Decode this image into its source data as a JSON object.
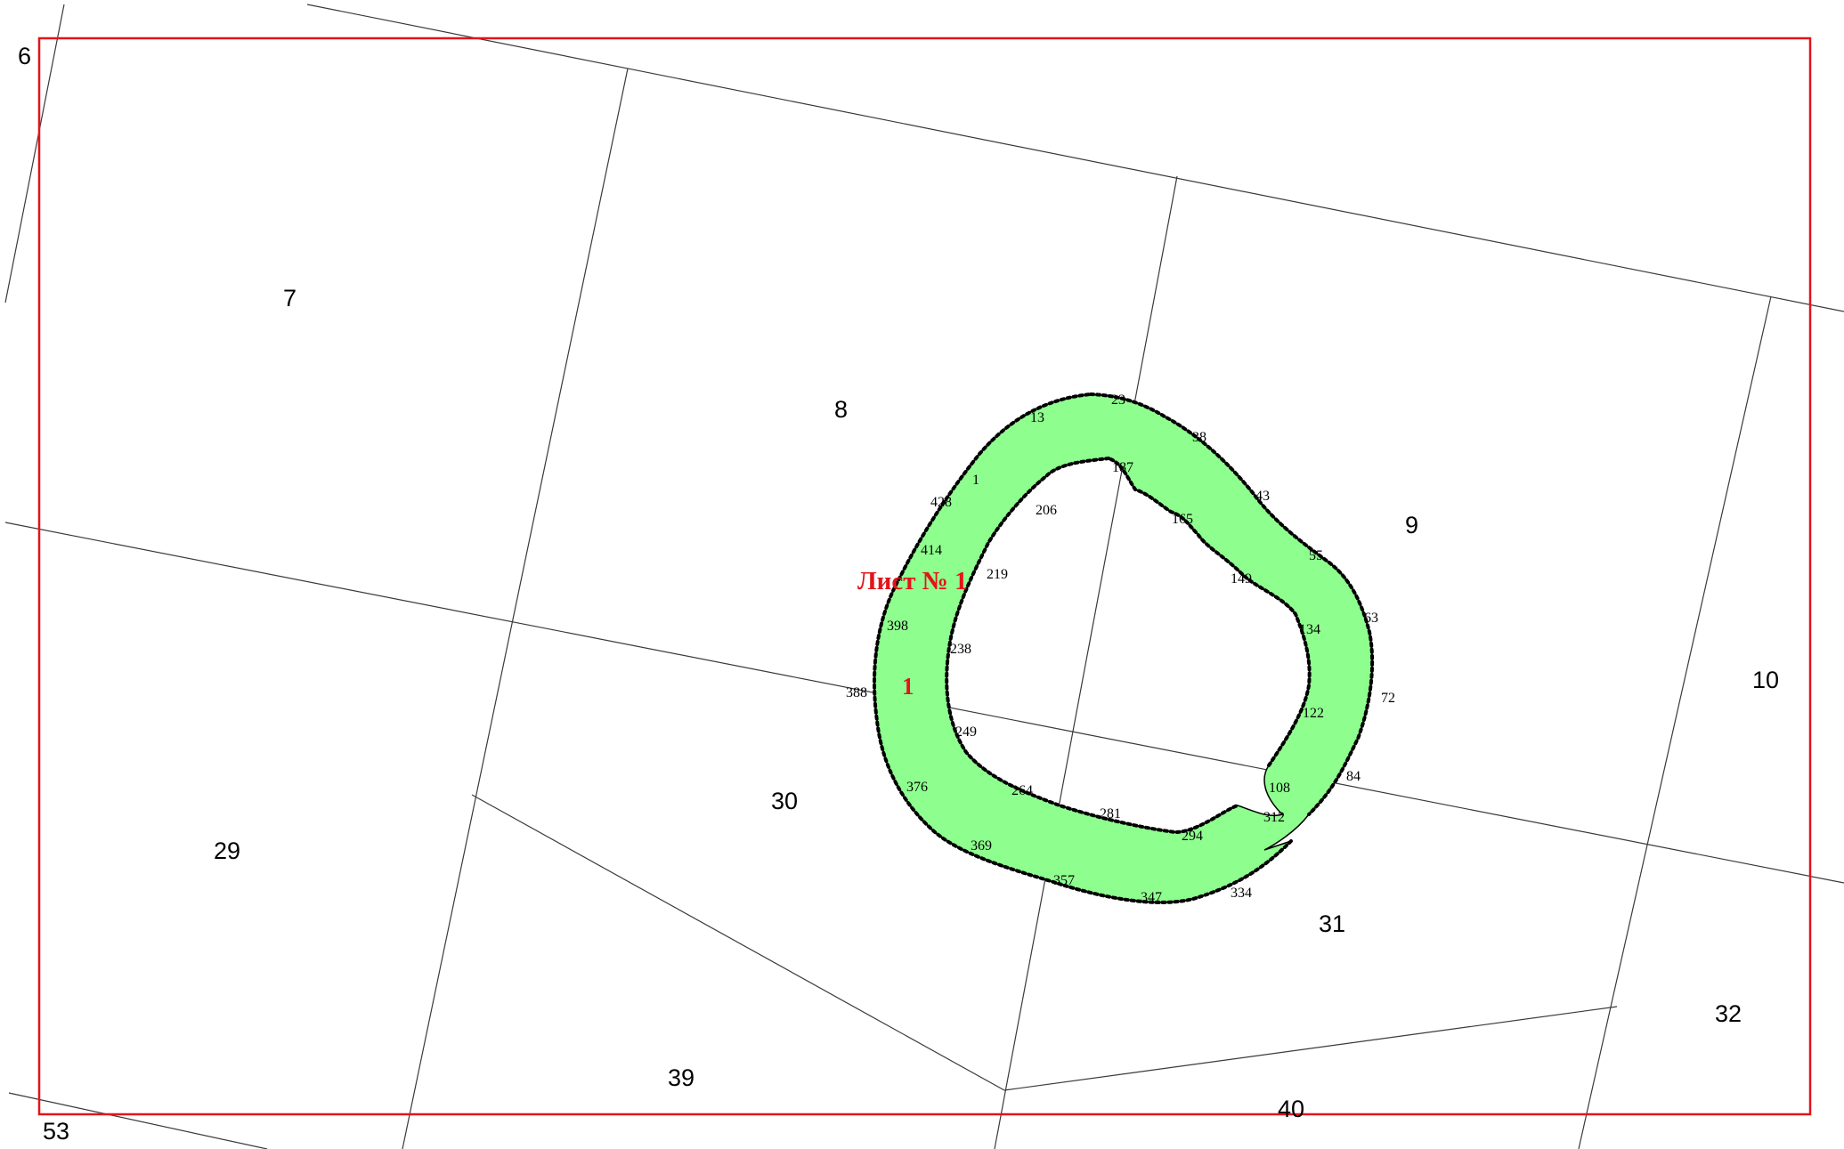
{
  "quarters": [
    "6",
    "7",
    "8",
    "9",
    "10",
    "29",
    "30",
    "31",
    "32",
    "39",
    "40",
    "53"
  ],
  "sheet_label": "Лист № 1",
  "parcel_label": "1",
  "point_labels": [
    "23",
    "13",
    "38",
    "187",
    "1",
    "43",
    "428",
    "206",
    "165",
    "55",
    "414",
    "219",
    "149",
    "63",
    "398",
    "134",
    "238",
    "72",
    "388",
    "122",
    "249",
    "84",
    "108",
    "376",
    "264",
    "312",
    "281",
    "294",
    "369",
    "357",
    "334",
    "347"
  ],
  "colors": {
    "frame": "#e3141a",
    "parcel_fill": "#8eff8e",
    "labels_red": "#e3141a"
  }
}
